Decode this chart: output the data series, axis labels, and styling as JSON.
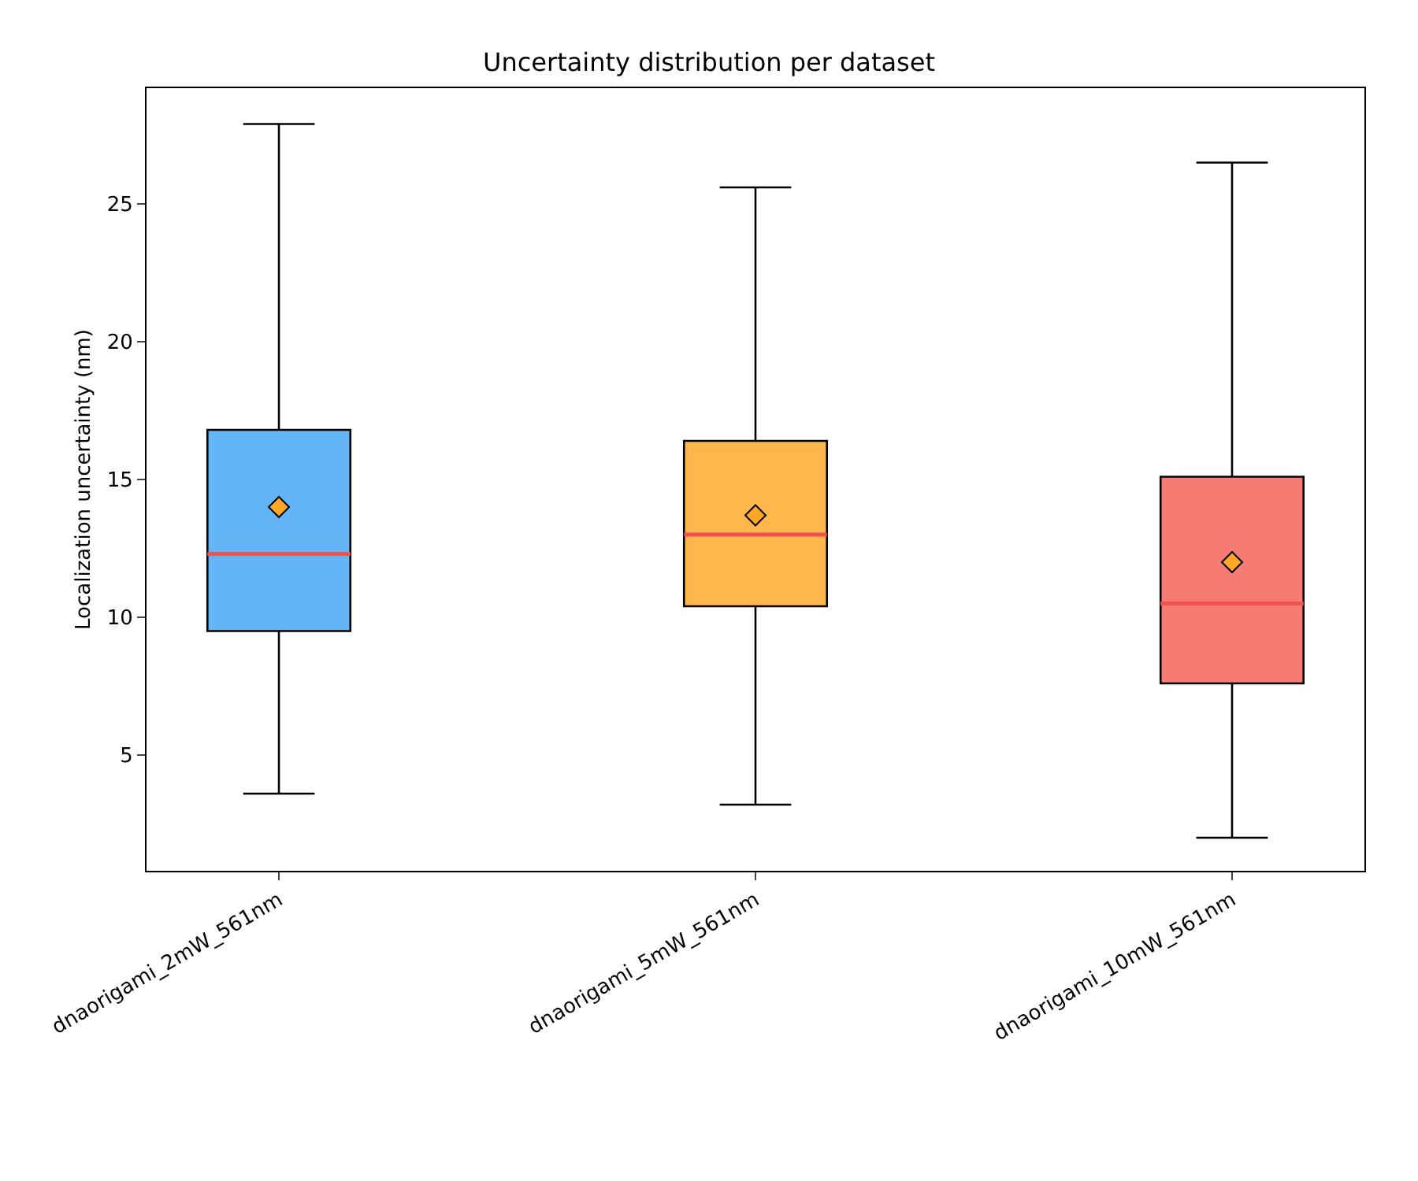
{
  "chart_data": {
    "type": "box",
    "title": "Uncertainty distribution per dataset",
    "ylabel": "Localization uncertainty (nm)",
    "categories": [
      "dnaorigami_2mW_561nm",
      "dnaorigami_5mW_561nm",
      "dnaorigami_10mW_561nm"
    ],
    "colors": [
      "#64b5f6",
      "#ffb74d",
      "#f67c73"
    ],
    "boxes": [
      {
        "low": 3.6,
        "q1": 9.5,
        "median": 12.3,
        "q3": 16.8,
        "high": 27.9,
        "mean": 14.0
      },
      {
        "low": 3.2,
        "q1": 10.4,
        "median": 13.0,
        "q3": 16.4,
        "high": 25.6,
        "mean": 13.7
      },
      {
        "low": 2.0,
        "q1": 7.6,
        "median": 10.5,
        "q3": 15.1,
        "high": 26.5,
        "mean": 12.0
      }
    ],
    "ylim": [
      0.8,
      29.2
    ],
    "yticks": [
      5,
      10,
      15,
      20,
      25
    ],
    "marker": "diamond",
    "grid": false
  }
}
